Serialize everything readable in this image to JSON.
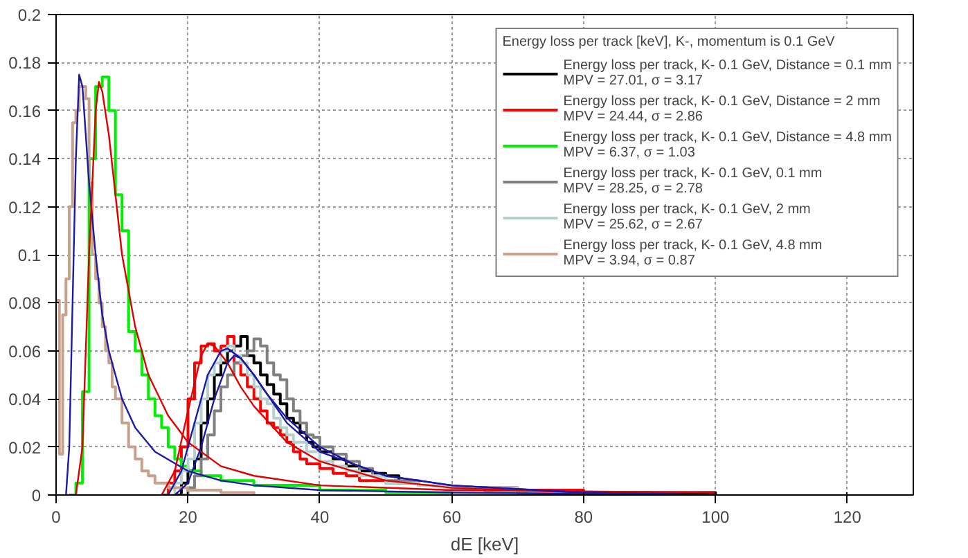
{
  "chart_data": {
    "type": "step",
    "xlabel": "dE [keV]",
    "legend_title": "Energy loss per track [keV], K-, momentum is 0.1 GeV",
    "legend": "top right",
    "grid": true,
    "line_style": "solid",
    "marker": "none",
    "xlim": [
      0,
      130
    ],
    "ylim": [
      0,
      0.2
    ],
    "xticks": [
      0,
      20,
      40,
      60,
      80,
      100,
      120
    ],
    "yticks": [
      0,
      0.02,
      0.04,
      0.06,
      0.08,
      0.1,
      0.12,
      0.14,
      0.16,
      0.18,
      0.2
    ],
    "series": [
      {
        "name": "Energy loss per track, K- 0.1 GeV, Distance = 0.1 mm\nMPV = 27.01, σ = 3.17",
        "color": "#000000",
        "x": [
          18,
          19,
          20,
          21,
          22,
          23,
          24,
          25,
          26,
          27,
          28,
          29,
          30,
          31,
          32,
          33,
          34,
          35,
          36,
          37,
          38,
          39,
          40,
          42,
          44,
          46,
          48,
          50,
          52,
          55,
          60,
          65,
          70,
          80,
          100
        ],
        "values": [
          0,
          0.005,
          0.01,
          0.015,
          0.03,
          0.04,
          0.05,
          0.055,
          0.06,
          0.062,
          0.066,
          0.058,
          0.055,
          0.05,
          0.046,
          0.042,
          0.038,
          0.032,
          0.03,
          0.026,
          0.022,
          0.02,
          0.018,
          0.015,
          0.012,
          0.01,
          0.009,
          0.008,
          0.005,
          0.004,
          0.003,
          0.002,
          0.001,
          0.001,
          0
        ]
      },
      {
        "name": "Energy loss per track, K- 0.1 GeV, Distance = 2 mm\nMPV = 24.44, σ = 2.86",
        "color": "#ff0000",
        "x": [
          16,
          17,
          18,
          19,
          20,
          21,
          22,
          23,
          24,
          25,
          26,
          27,
          28,
          29,
          30,
          31,
          32,
          33,
          34,
          35,
          36,
          37,
          38,
          40,
          42,
          44,
          46,
          50,
          55,
          60,
          70,
          80,
          90
        ],
        "values": [
          0,
          0.005,
          0.01,
          0.02,
          0.04,
          0.055,
          0.062,
          0.063,
          0.06,
          0.062,
          0.066,
          0.055,
          0.05,
          0.045,
          0.04,
          0.035,
          0.03,
          0.028,
          0.025,
          0.022,
          0.018,
          0.015,
          0.013,
          0.011,
          0.009,
          0.008,
          0.006,
          0.005,
          0.004,
          0.003,
          0.002,
          0.001,
          0
        ]
      },
      {
        "name": "Energy loss per track, K- 0.1 GeV, Distance = 4.8 mm\nMPV = 6.37, σ = 1.03",
        "color": "#00ee00",
        "x": [
          2,
          3,
          4,
          5,
          6,
          7,
          8,
          9,
          10,
          11,
          12,
          13,
          14,
          15,
          16,
          17,
          18,
          19,
          20,
          22,
          25,
          30,
          40,
          50,
          60
        ],
        "values": [
          0,
          0.005,
          0.043,
          0.14,
          0.17,
          0.174,
          0.16,
          0.125,
          0.11,
          0.068,
          0.06,
          0.05,
          0.04,
          0.033,
          0.028,
          0.02,
          0.015,
          0.012,
          0.01,
          0.008,
          0.006,
          0.004,
          0.002,
          0.001,
          0
        ]
      },
      {
        "name": "Energy loss per track, K- 0.1 GeV, 0.1 mm\nMPV = 28.25, σ = 2.78",
        "color": "#808080",
        "x": [
          19,
          20,
          21,
          22,
          23,
          24,
          25,
          26,
          27,
          28,
          29,
          30,
          31,
          32,
          33,
          34,
          35,
          36,
          37,
          38,
          39,
          40,
          42,
          44,
          46,
          48,
          50,
          55,
          60,
          70,
          80
        ],
        "values": [
          0,
          0.003,
          0.008,
          0.015,
          0.025,
          0.035,
          0.045,
          0.05,
          0.055,
          0.058,
          0.06,
          0.065,
          0.062,
          0.055,
          0.05,
          0.048,
          0.04,
          0.035,
          0.03,
          0.025,
          0.024,
          0.02,
          0.017,
          0.014,
          0.011,
          0.008,
          0.006,
          0.004,
          0.003,
          0.001,
          0
        ]
      },
      {
        "name": "Energy loss per track, K- 0.1 GeV, 2 mm\nMPV = 25.62, σ = 2.67",
        "color": "#b4d2cd",
        "x": [
          17,
          18,
          19,
          20,
          21,
          22,
          23,
          24,
          25,
          26,
          27,
          28,
          29,
          30,
          31,
          32,
          33,
          34,
          35,
          36,
          38,
          40,
          42,
          44,
          46,
          50,
          55,
          60,
          70,
          80
        ],
        "values": [
          0,
          0.005,
          0.01,
          0.015,
          0.03,
          0.04,
          0.05,
          0.055,
          0.06,
          0.062,
          0.058,
          0.055,
          0.05,
          0.045,
          0.04,
          0.038,
          0.032,
          0.028,
          0.025,
          0.022,
          0.018,
          0.014,
          0.012,
          0.01,
          0.008,
          0.005,
          0.004,
          0.003,
          0.001,
          0
        ]
      },
      {
        "name": "Energy loss per track, K- 0.1 GeV, 4.8 mm\nMPV = 3.94, σ = 0.87",
        "color": "#c8a08c",
        "x": [
          0,
          0.5,
          1,
          1.5,
          2,
          2.5,
          3,
          3.5,
          4,
          4.5,
          5,
          5.5,
          6,
          6.5,
          7,
          7.5,
          8,
          8.5,
          9,
          10,
          11,
          12,
          13,
          14,
          15,
          17,
          20,
          25,
          30
        ],
        "values": [
          0.081,
          0.017,
          0.075,
          0.09,
          0.12,
          0.155,
          0.16,
          0.17,
          0.17,
          0.165,
          0.13,
          0.1,
          0.09,
          0.08,
          0.07,
          0.06,
          0.055,
          0.045,
          0.04,
          0.03,
          0.02,
          0.015,
          0.01,
          0.008,
          0.005,
          0.003,
          0.002,
          0.001,
          0
        ]
      },
      {
        "type": "line",
        "color": "#1a1aa6",
        "x": [
          1.5,
          2,
          2.5,
          3,
          3.5,
          4,
          5,
          6,
          7,
          8,
          10,
          12,
          15,
          20,
          25,
          30,
          40,
          60,
          100
        ],
        "values": [
          0,
          0.02,
          0.08,
          0.14,
          0.175,
          0.17,
          0.13,
          0.1,
          0.075,
          0.06,
          0.04,
          0.028,
          0.018,
          0.01,
          0.006,
          0.004,
          0.002,
          0.001,
          0
        ]
      },
      {
        "type": "line",
        "color": "#e00000",
        "x": [
          3,
          4,
          5,
          6,
          6.5,
          7,
          8,
          9,
          10,
          12,
          14,
          17,
          20,
          25,
          30,
          40,
          60,
          100
        ],
        "values": [
          0,
          0.02,
          0.1,
          0.16,
          0.172,
          0.168,
          0.15,
          0.125,
          0.1,
          0.07,
          0.05,
          0.033,
          0.022,
          0.012,
          0.008,
          0.004,
          0.002,
          0.001
        ]
      },
      {
        "type": "line",
        "color": "#e00000",
        "x": [
          16,
          18,
          20,
          22,
          23,
          24,
          26,
          28,
          30,
          35,
          40,
          50,
          60,
          80,
          100
        ],
        "values": [
          0,
          0.01,
          0.035,
          0.058,
          0.063,
          0.062,
          0.055,
          0.045,
          0.037,
          0.022,
          0.014,
          0.006,
          0.003,
          0.001,
          0
        ]
      },
      {
        "type": "line",
        "color": "#1a1aa6",
        "x": [
          18,
          20,
          22,
          24,
          26,
          27,
          28,
          30,
          32,
          35,
          40,
          45,
          50,
          60,
          80,
          100
        ],
        "values": [
          0,
          0.005,
          0.02,
          0.04,
          0.055,
          0.058,
          0.057,
          0.05,
          0.042,
          0.032,
          0.02,
          0.013,
          0.008,
          0.004,
          0.001,
          0
        ]
      },
      {
        "type": "line",
        "color": "#1a1aa6",
        "x": [
          17,
          19,
          21,
          23,
          25,
          26,
          28,
          30,
          35,
          40,
          50,
          60,
          80,
          100
        ],
        "values": [
          0,
          0.01,
          0.03,
          0.05,
          0.06,
          0.061,
          0.057,
          0.05,
          0.03,
          0.018,
          0.008,
          0.004,
          0.001,
          0
        ]
      }
    ]
  }
}
